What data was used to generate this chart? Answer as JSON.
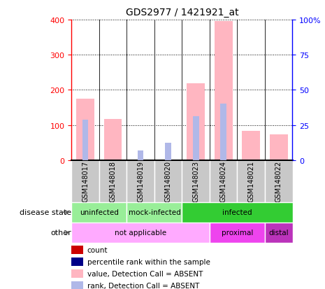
{
  "title": "GDS2977 / 1421921_at",
  "samples": [
    "GSM148017",
    "GSM148018",
    "GSM148019",
    "GSM148020",
    "GSM148023",
    "GSM148024",
    "GSM148021",
    "GSM148022"
  ],
  "value_absent": [
    175,
    118,
    0,
    0,
    218,
    395,
    83,
    73
  ],
  "rank_absent_on_value": [
    115,
    0,
    0,
    0,
    125,
    160,
    0,
    0
  ],
  "rank_absent_only": [
    0,
    0,
    27,
    50,
    0,
    0,
    0,
    0
  ],
  "disease_state_groups": [
    {
      "label": "uninfected",
      "color": "#98EE98",
      "start": 0,
      "end": 2
    },
    {
      "label": "mock-infected",
      "color": "#98EE98",
      "start": 2,
      "end": 4
    },
    {
      "label": "infected",
      "color": "#33CC33",
      "start": 4,
      "end": 8
    }
  ],
  "other_groups": [
    {
      "label": "not applicable",
      "color": "#FFAAFF",
      "start": 0,
      "end": 5
    },
    {
      "label": "proximal",
      "color": "#EE44EE",
      "start": 5,
      "end": 7
    },
    {
      "label": "distal",
      "color": "#BB33BB",
      "start": 7,
      "end": 8
    }
  ],
  "ylim_left": [
    0,
    400
  ],
  "ylim_right": [
    0,
    100
  ],
  "yticks_left": [
    0,
    100,
    200,
    300,
    400
  ],
  "yticks_right": [
    0,
    25,
    50,
    75,
    100
  ],
  "color_value_absent": "#FFB6C1",
  "color_rank_absent": "#B0B8E8",
  "color_count": "#CC0000",
  "color_rank": "#000088",
  "color_sample_bg": "#C8C8C8",
  "disease_state_label": "disease state",
  "other_label": "other",
  "legend_items": [
    {
      "label": "count",
      "color": "#CC0000"
    },
    {
      "label": "percentile rank within the sample",
      "color": "#000088"
    },
    {
      "label": "value, Detection Call = ABSENT",
      "color": "#FFB6C1"
    },
    {
      "label": "rank, Detection Call = ABSENT",
      "color": "#B0B8E8"
    }
  ]
}
